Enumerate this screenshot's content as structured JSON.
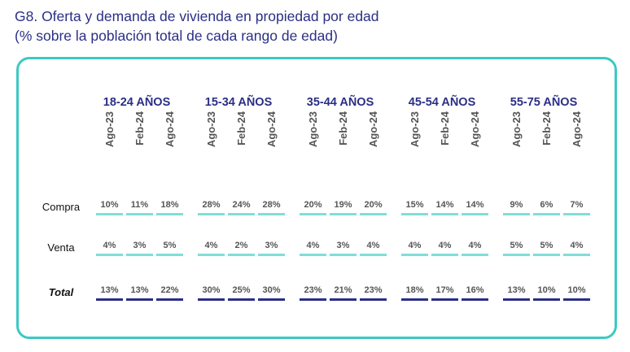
{
  "title": {
    "line1": "G8. Oferta y demanda de vivienda en propiedad por edad",
    "line2": "(% sobre la población total de cada rango de edad)"
  },
  "colors": {
    "title": "#2b2f86",
    "frame": "#3cc9c3",
    "row_underline": "#7fded8",
    "total_underline": "#2b2f86"
  },
  "chart_data": {
    "type": "table",
    "groups": [
      "18-24 AÑOS",
      "15-34 AÑOS",
      "35-44 AÑOS",
      "45-54 AÑOS",
      "55-75 AÑOS"
    ],
    "periods": [
      "Ago-23",
      "Feb-24",
      "Ago-24"
    ],
    "rows": [
      {
        "label": "Compra",
        "values": [
          [
            10,
            11,
            18
          ],
          [
            28,
            24,
            28
          ],
          [
            20,
            19,
            20
          ],
          [
            15,
            14,
            14
          ],
          [
            9,
            6,
            7
          ]
        ]
      },
      {
        "label": "Venta",
        "values": [
          [
            4,
            3,
            5
          ],
          [
            4,
            2,
            3
          ],
          [
            4,
            3,
            4
          ],
          [
            4,
            4,
            4
          ],
          [
            5,
            5,
            4
          ]
        ]
      },
      {
        "label": "Total",
        "values": [
          [
            13,
            13,
            22
          ],
          [
            30,
            25,
            30
          ],
          [
            23,
            21,
            23
          ],
          [
            18,
            17,
            16
          ],
          [
            13,
            10,
            10
          ]
        ]
      }
    ],
    "unit": "%"
  }
}
